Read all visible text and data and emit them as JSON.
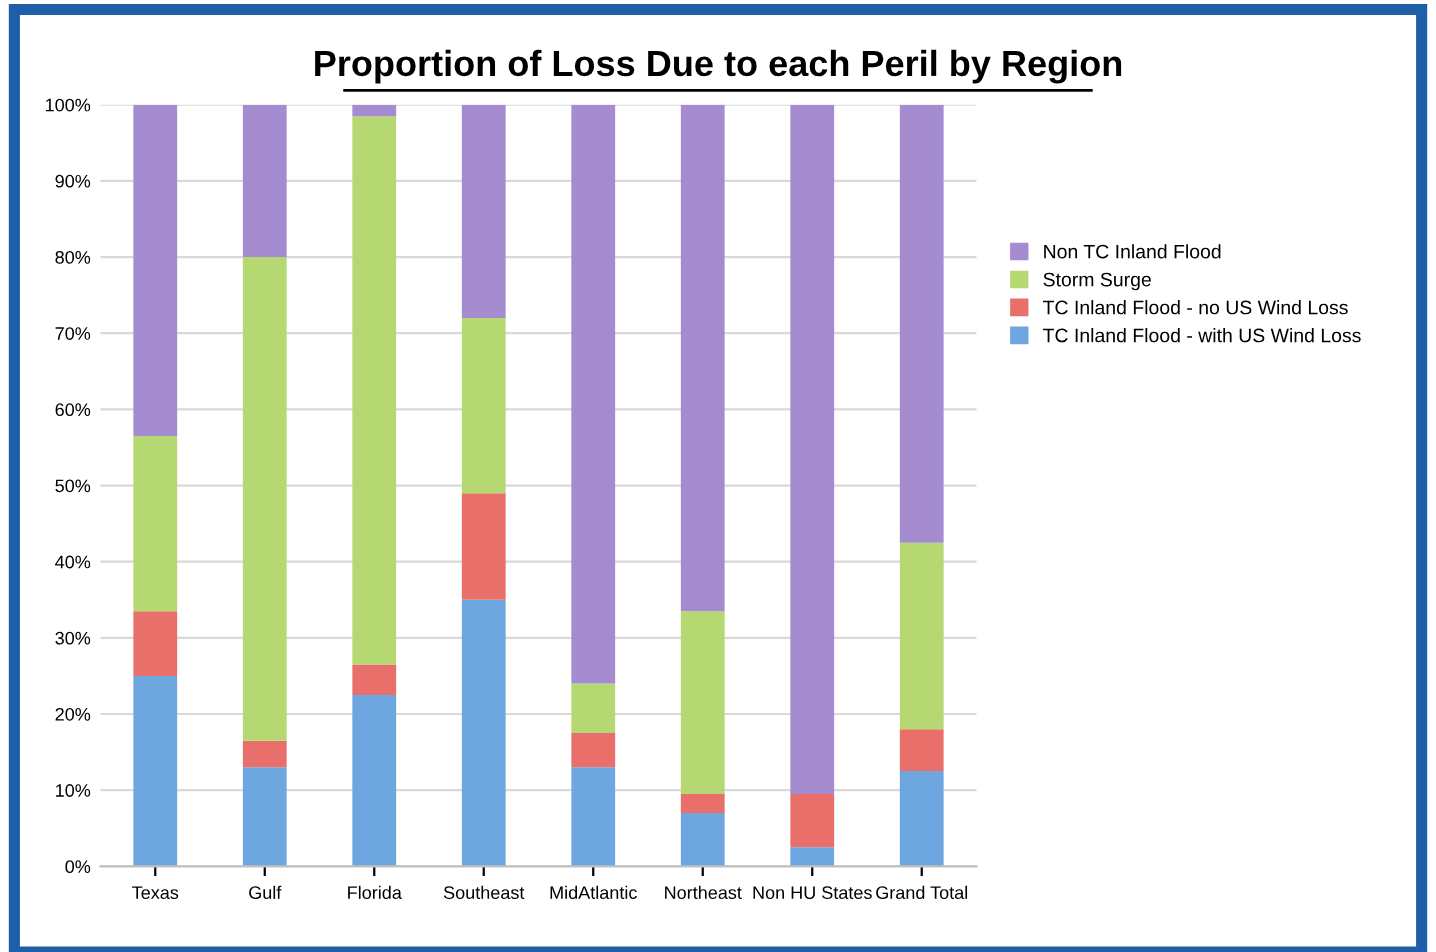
{
  "chart_data": {
    "type": "bar",
    "title": "Proportion of Loss Due to each Peril by Region",
    "stacked": true,
    "categories": [
      "Texas",
      "Gulf",
      "Florida",
      "Southeast",
      "MidAtlantic",
      "Northeast",
      "Non HU States",
      "Grand Total"
    ],
    "series": [
      {
        "name": "TC Inland Flood - with US Wind Loss",
        "color": "#6ea6e0",
        "values": [
          25,
          13,
          22.5,
          35,
          13,
          7,
          2.5,
          12.5
        ]
      },
      {
        "name": "TC Inland Flood - no US Wind Loss",
        "color": "#e9706a",
        "values": [
          8.5,
          3.5,
          4,
          14,
          4.5,
          2.5,
          7,
          5.5
        ]
      },
      {
        "name": "Storm Surge",
        "color": "#b5d872",
        "values": [
          23,
          63.5,
          72,
          23,
          6.5,
          24,
          0,
          24.5
        ]
      },
      {
        "name": "Non TC Inland Flood",
        "color": "#a58bd0",
        "values": [
          43.5,
          20,
          1.5,
          28,
          76,
          66.5,
          90.5,
          57.5
        ]
      }
    ],
    "ylim": [
      0,
      100
    ],
    "yticks": [
      {
        "value": 0,
        "label": "0%"
      },
      {
        "value": 10,
        "label": "10%"
      },
      {
        "value": 20,
        "label": "20%"
      },
      {
        "value": 30,
        "label": "30%"
      },
      {
        "value": 40,
        "label": "40%"
      },
      {
        "value": 50,
        "label": "50%"
      },
      {
        "value": 60,
        "label": "60%"
      },
      {
        "value": 70,
        "label": "70%"
      },
      {
        "value": 80,
        "label": "80%"
      },
      {
        "value": 90,
        "label": "90%"
      },
      {
        "value": 100,
        "label": "100%"
      }
    ],
    "grid": "y",
    "legend": "right"
  }
}
